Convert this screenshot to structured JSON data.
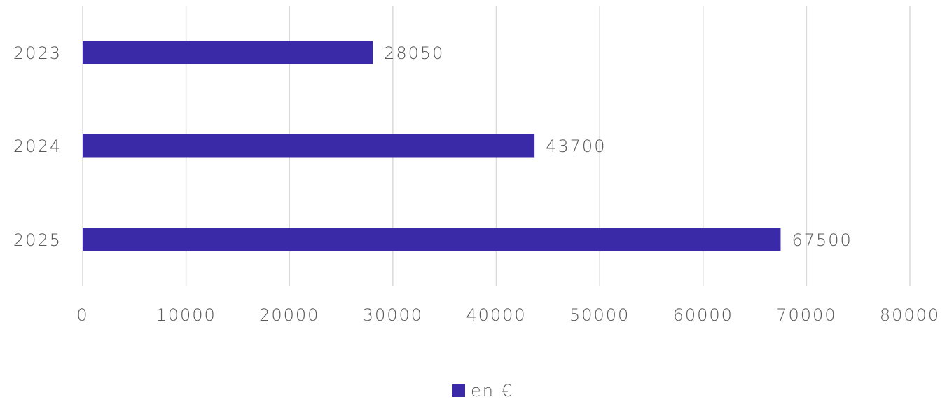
{
  "chart_data": {
    "type": "bar",
    "orientation": "horizontal",
    "categories": [
      "2023",
      "2024",
      "2025"
    ],
    "series": [
      {
        "name": "en €",
        "values": [
          28050,
          43700,
          67500
        ],
        "color": "#3a2aa8"
      }
    ],
    "xlim": [
      0,
      80000
    ],
    "xticks": [
      0,
      10000,
      20000,
      30000,
      40000,
      50000,
      60000,
      70000,
      80000
    ],
    "xtick_labels": [
      "0",
      "10000",
      "20000",
      "30000",
      "40000",
      "50000",
      "60000",
      "70000",
      "80000"
    ],
    "data_labels": [
      "28050",
      "43700",
      "67500"
    ],
    "grid": "vertical",
    "legend": {
      "position": "bottom",
      "entries": [
        "en €"
      ]
    },
    "title": "",
    "xlabel": "",
    "ylabel": ""
  }
}
